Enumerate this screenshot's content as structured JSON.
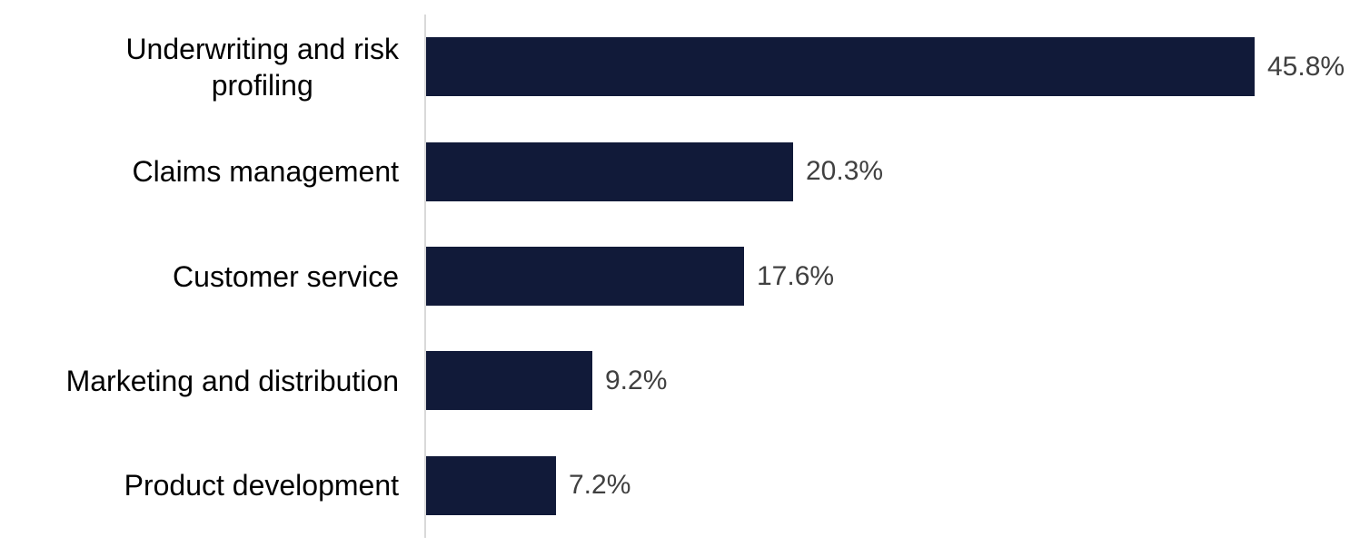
{
  "chart_data": {
    "type": "bar",
    "orientation": "horizontal",
    "title": "",
    "xlabel": "",
    "ylabel": "",
    "categories": [
      "Underwriting and risk profiling",
      "Claims management",
      "Customer service",
      "Marketing and distribution",
      "Product development"
    ],
    "values": [
      45.8,
      20.3,
      17.6,
      9.2,
      7.2
    ],
    "value_labels": [
      "45.8%",
      "20.3%",
      "17.6%",
      "9.2%",
      "7.2%"
    ],
    "display_category_labels": [
      "Underwriting and risk\nprofiling",
      "Claims management",
      "Customer service",
      "Marketing and distribution",
      "Product development"
    ],
    "xlim": [
      0,
      50
    ],
    "grid": false,
    "legend": false,
    "colors": {
      "bar": "#111a39",
      "value_label": "#404040",
      "category_label": "#000000",
      "axis_line": "#d9d9d9",
      "background": "#ffffff"
    }
  }
}
